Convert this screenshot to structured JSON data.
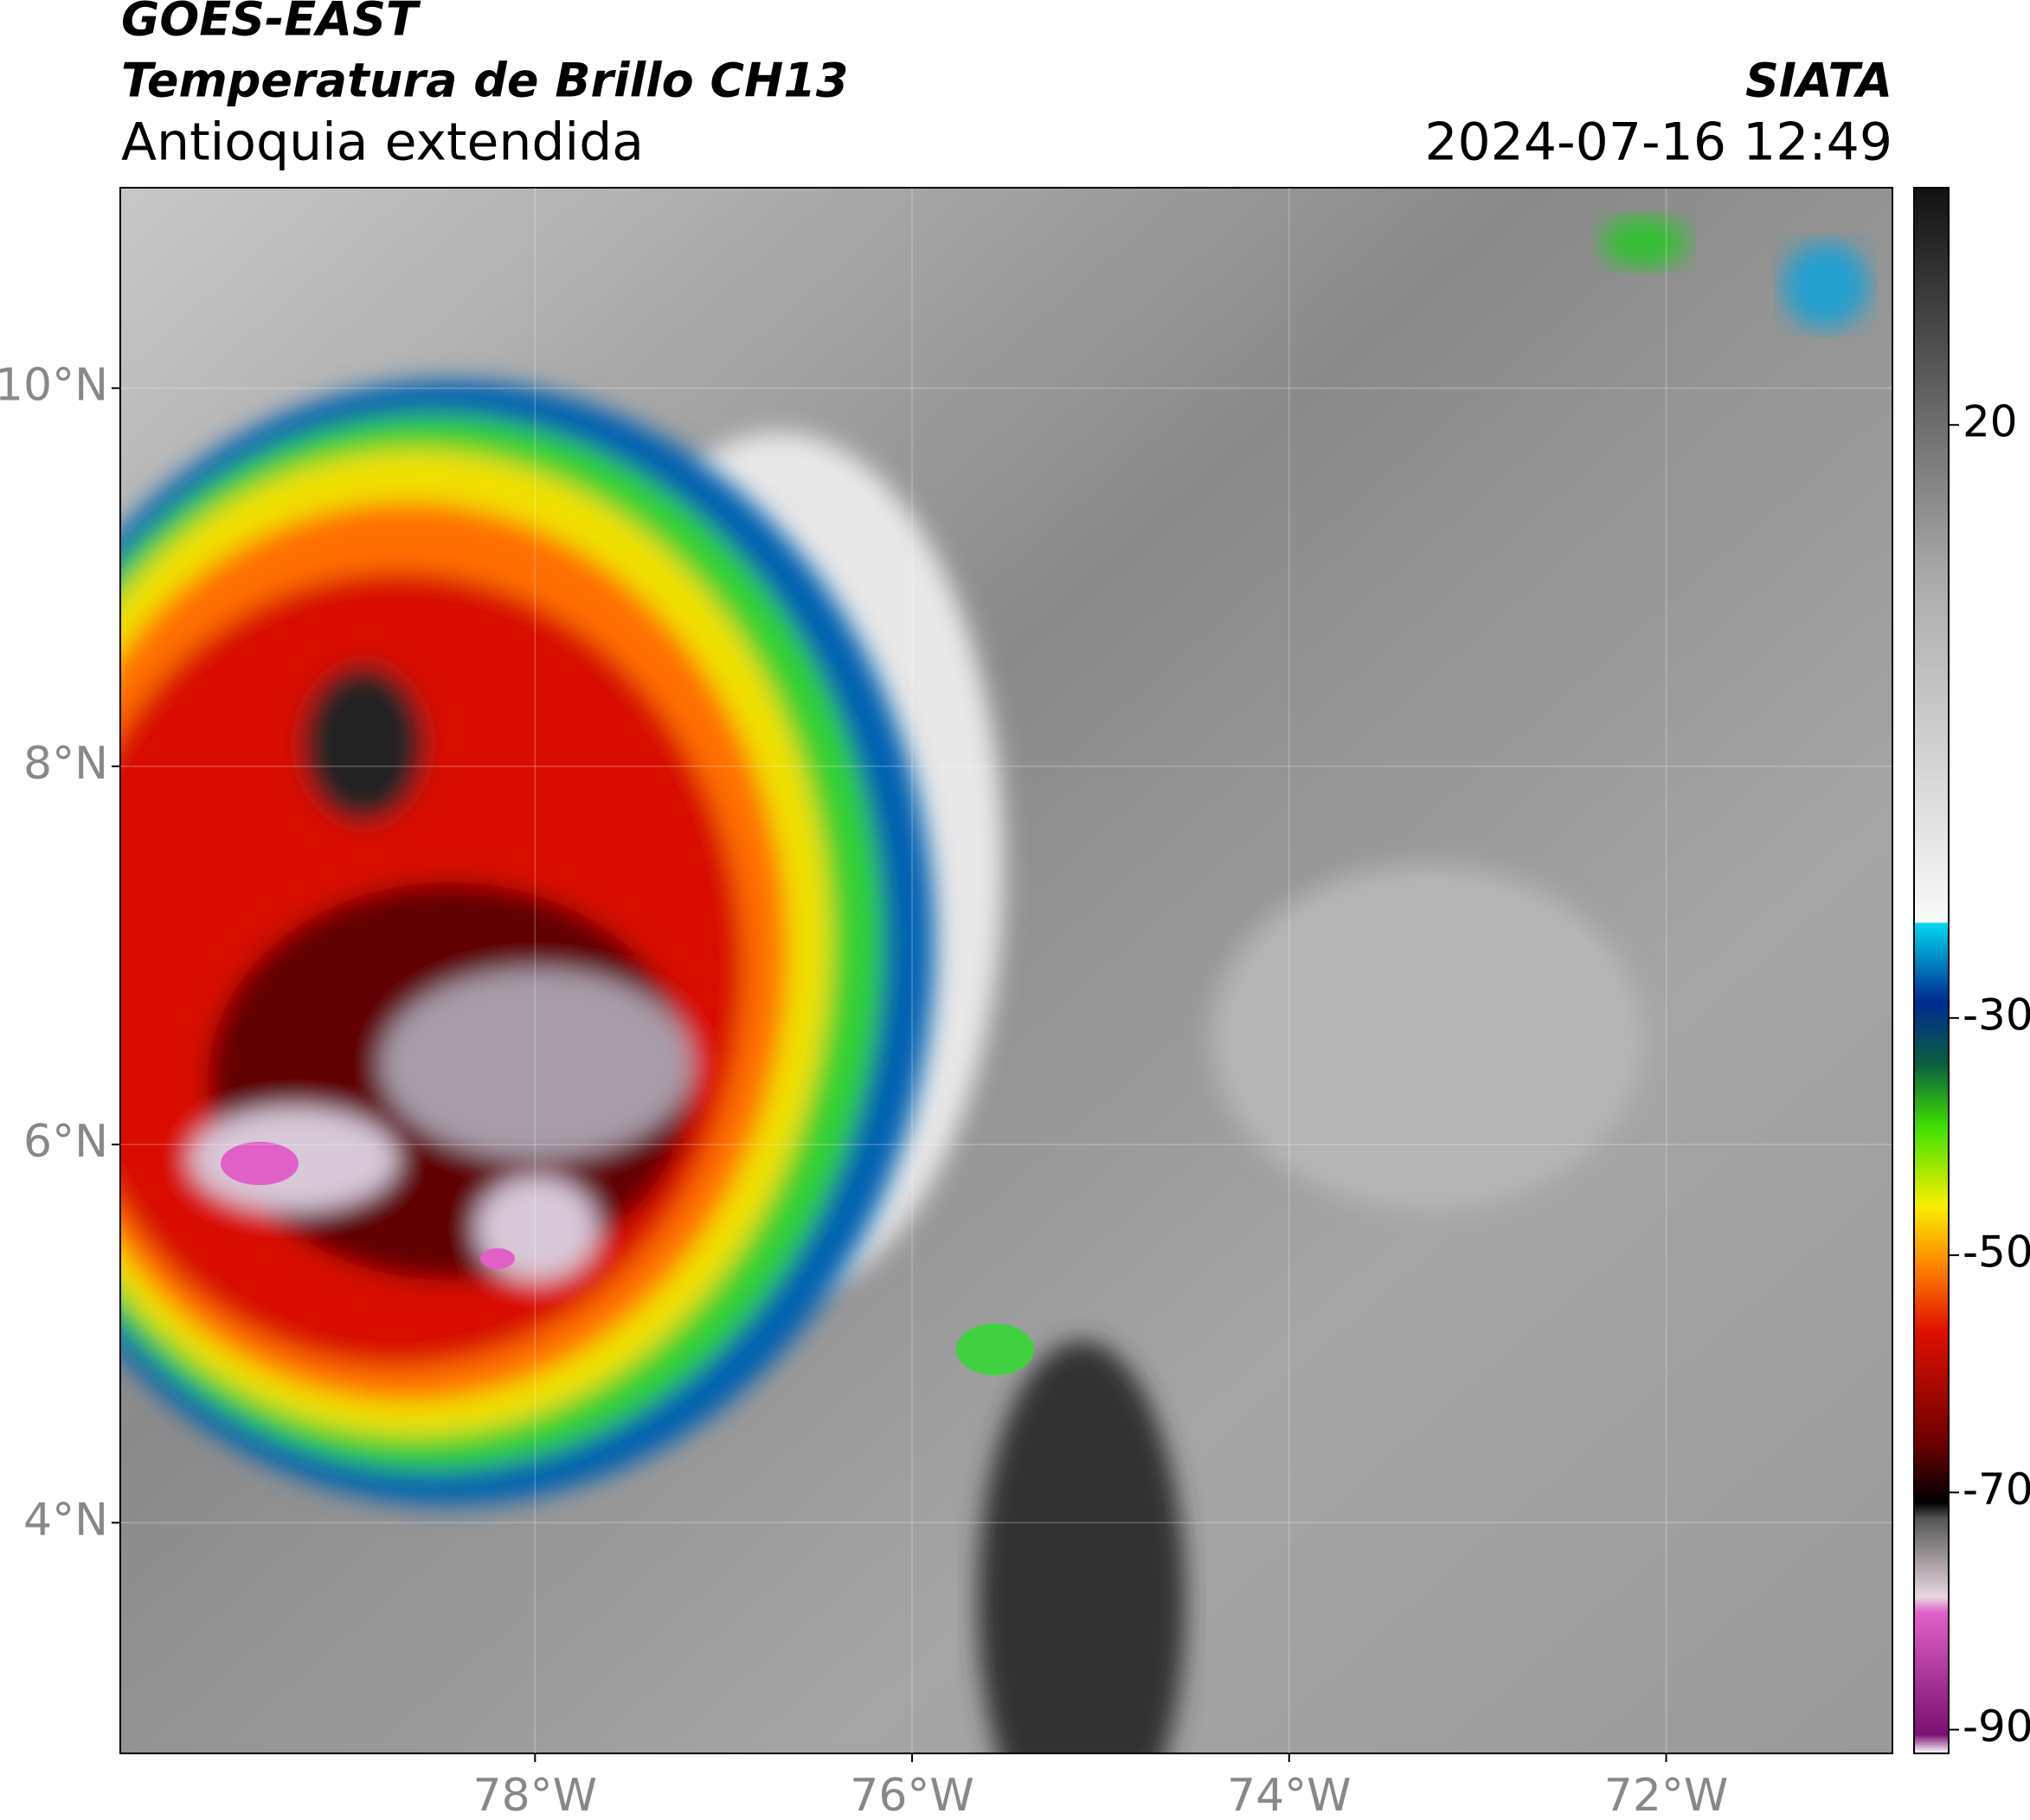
{
  "header": {
    "title": "GOES-EAST",
    "subtitle": "Temperatura de Brillo CH13",
    "region": "Antioquia extendida",
    "source": "SIATA",
    "datetime": "2024-07-16 12:49"
  },
  "map": {
    "xlim": [
      -80.2,
      -70.8
    ],
    "ylim": [
      2.78,
      11.06
    ],
    "xticks": [
      {
        "value": -78,
        "label": "78°W"
      },
      {
        "value": -76,
        "label": "76°W"
      },
      {
        "value": -74,
        "label": "74°W"
      },
      {
        "value": -72,
        "label": "72°W"
      }
    ],
    "yticks": [
      {
        "value": 4,
        "label": "4°N"
      },
      {
        "value": 6,
        "label": "6°N"
      },
      {
        "value": 8,
        "label": "8°N"
      },
      {
        "value": 10,
        "label": "10°N"
      }
    ]
  },
  "colorbar": {
    "lim": [
      -92,
      40
    ],
    "ticks": [
      -90,
      -70,
      -50,
      -30,
      20
    ]
  }
}
